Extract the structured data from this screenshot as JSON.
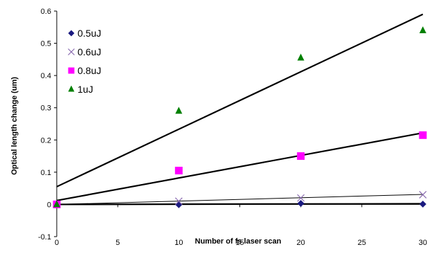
{
  "chart_data": {
    "type": "scatter",
    "xlabel": "Number of fs laser scan",
    "ylabel": "Optical length change (um)",
    "xlim": [
      0,
      30
    ],
    "ylim": [
      -0.1,
      0.6
    ],
    "x_ticks": [
      "0",
      "5",
      "10",
      "15",
      "20",
      "25",
      "30"
    ],
    "y_ticks": [
      "-0.1",
      "0",
      "0.1",
      "0.2",
      "0.3",
      "0.4",
      "0.5",
      "0.6"
    ],
    "grid": false,
    "legend_position": "top-left",
    "series": [
      {
        "name": "0.5uJ",
        "marker": "diamond",
        "color": "#1a1a80",
        "x": [
          0,
          10,
          20,
          30
        ],
        "y": [
          0,
          -0.001,
          0.003,
          0.001
        ],
        "trendline": {
          "x": [
            0,
            30
          ],
          "y": [
            0.0,
            0.002
          ]
        }
      },
      {
        "name": "0.6uJ",
        "marker": "x",
        "color": "#8a6bb0",
        "x": [
          0,
          10,
          20,
          30
        ],
        "y": [
          0,
          0.01,
          0.02,
          0.03
        ],
        "trendline": {
          "x": [
            0,
            30
          ],
          "y": [
            0.0,
            0.031
          ]
        }
      },
      {
        "name": "0.8uJ",
        "marker": "square",
        "color": "#ff00ff",
        "x": [
          0,
          10,
          20,
          30
        ],
        "y": [
          0,
          0.105,
          0.15,
          0.215
        ],
        "trendline": {
          "x": [
            0,
            30
          ],
          "y": [
            0.012,
            0.222
          ]
        }
      },
      {
        "name": "1uJ",
        "marker": "triangle",
        "color": "#008000",
        "x": [
          0,
          10,
          20,
          30
        ],
        "y": [
          0,
          0.29,
          0.455,
          0.54
        ],
        "trendline": {
          "x": [
            0,
            30
          ],
          "y": [
            0.055,
            0.59
          ]
        }
      }
    ]
  }
}
